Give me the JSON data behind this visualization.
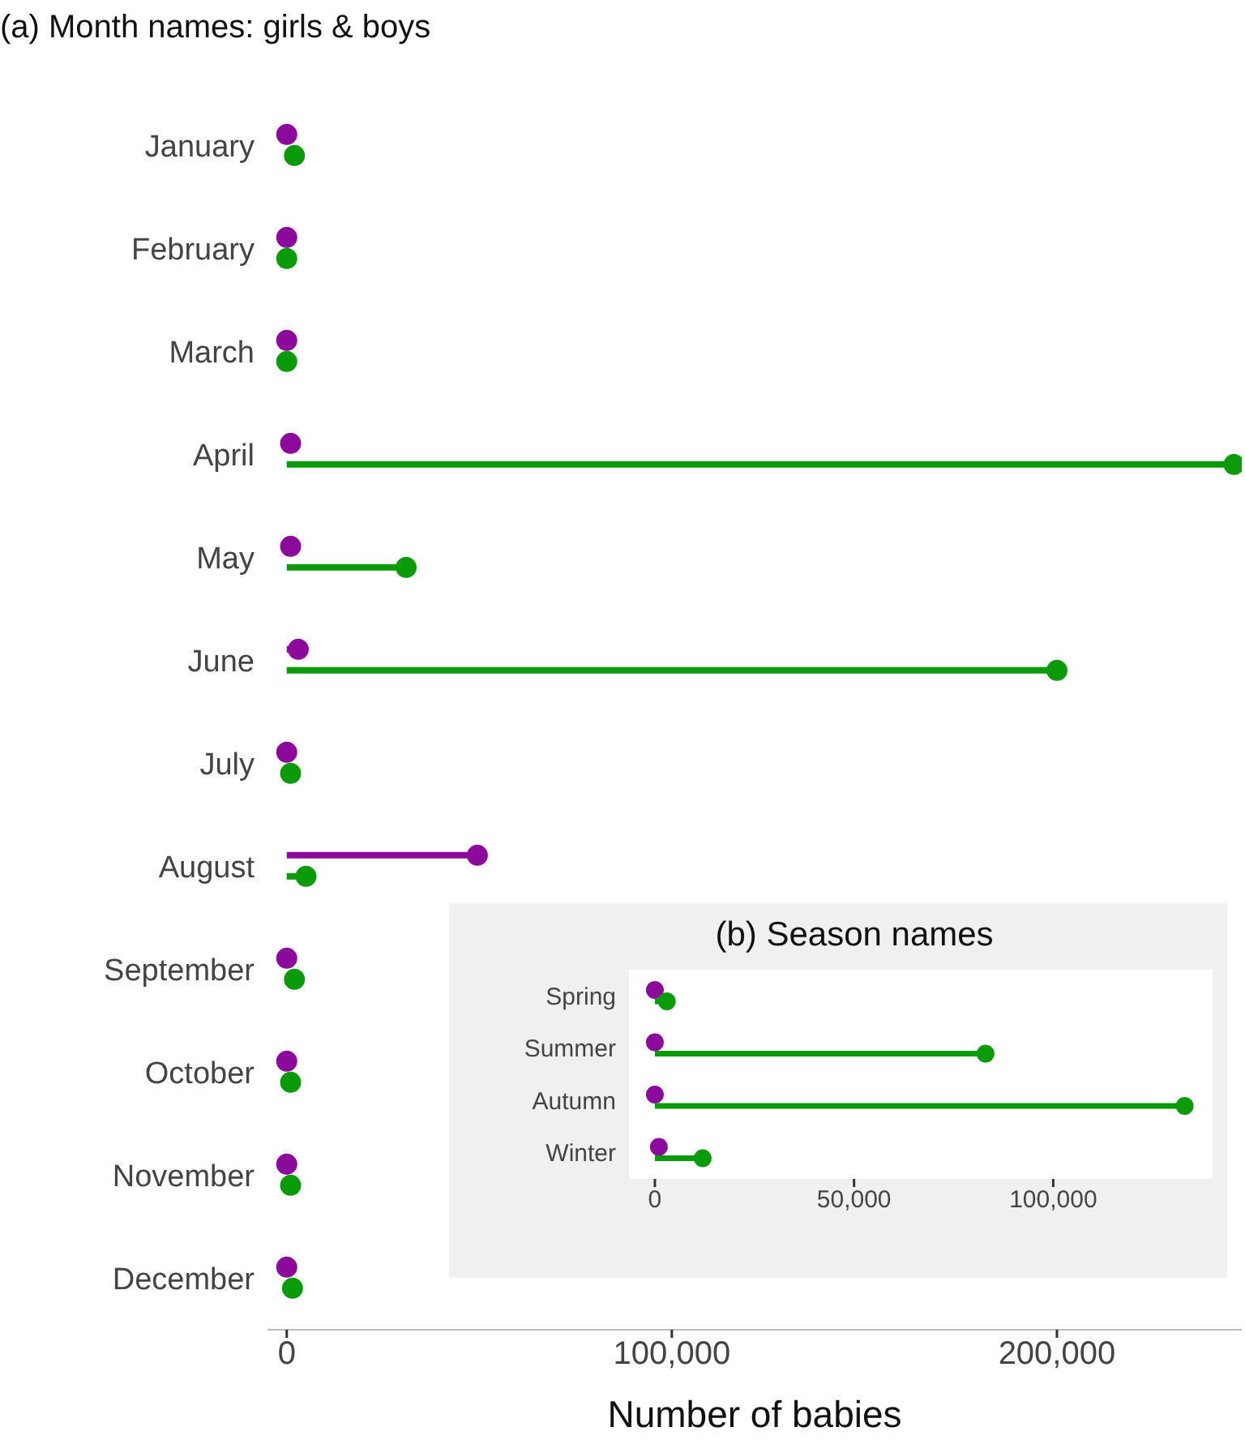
{
  "chart_data": [
    {
      "type": "lollipop",
      "orientation": "horizontal",
      "title": "(a) Month names: girls & boys",
      "xlabel": "Number of babies",
      "categories": [
        "January",
        "February",
        "March",
        "April",
        "May",
        "June",
        "July",
        "August",
        "September",
        "October",
        "November",
        "December"
      ],
      "series": [
        {
          "color": "#8b0a9b",
          "values": [
            0,
            0,
            0,
            1000,
            1000,
            3000,
            0,
            49500,
            0,
            0,
            0,
            0
          ]
        },
        {
          "color": "#0a9a0a",
          "values": [
            2000,
            0,
            0,
            246000,
            31000,
            200000,
            1000,
            5000,
            2000,
            1000,
            1000,
            1500
          ]
        }
      ],
      "xlim": [
        -5000,
        248000
      ],
      "xticks": [
        {
          "value": 0,
          "label": "0"
        },
        {
          "value": 100000,
          "label": "100,000"
        },
        {
          "value": 200000,
          "label": "200,000"
        }
      ]
    },
    {
      "type": "lollipop",
      "orientation": "horizontal",
      "title": "(b) Season names",
      "categories": [
        "Spring",
        "Summer",
        "Autumn",
        "Winter"
      ],
      "series": [
        {
          "color": "#8b0a9b",
          "values": [
            0,
            0,
            0,
            1000
          ]
        },
        {
          "color": "#0a9a0a",
          "values": [
            3000,
            83000,
            133000,
            12000
          ]
        }
      ],
      "xlim": [
        -6500,
        140000
      ],
      "xticks": [
        {
          "value": 0,
          "label": "0"
        },
        {
          "value": 50000,
          "label": "50,000"
        },
        {
          "value": 100000,
          "label": "100,000"
        }
      ]
    }
  ]
}
